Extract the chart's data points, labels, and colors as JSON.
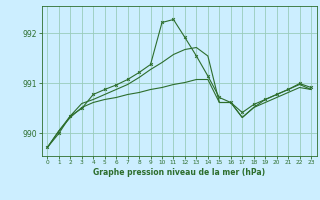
{
  "title": "Graphe pression niveau de la mer (hPa)",
  "background_color": "#cceeff",
  "grid_color": "#99ccbb",
  "line_color": "#2d6e2d",
  "xlim": [
    -0.5,
    23.5
  ],
  "ylim": [
    989.55,
    992.55
  ],
  "yticks": [
    990,
    991,
    992
  ],
  "xticks": [
    0,
    1,
    2,
    3,
    4,
    5,
    6,
    7,
    8,
    9,
    10,
    11,
    12,
    13,
    14,
    15,
    16,
    17,
    18,
    19,
    20,
    21,
    22,
    23
  ],
  "series1": [
    989.72,
    990.0,
    990.35,
    990.5,
    990.78,
    990.88,
    990.97,
    991.08,
    991.22,
    991.38,
    992.22,
    992.28,
    991.92,
    991.55,
    991.15,
    990.72,
    990.62,
    990.42,
    990.58,
    990.68,
    990.78,
    990.88,
    991.0,
    990.92
  ],
  "series2": [
    989.72,
    990.05,
    990.35,
    990.6,
    990.68,
    990.78,
    990.88,
    990.98,
    991.12,
    991.28,
    991.42,
    991.58,
    991.68,
    991.72,
    991.55,
    990.62,
    990.62,
    990.32,
    990.52,
    990.68,
    990.78,
    990.88,
    990.98,
    990.88
  ],
  "series3": [
    989.72,
    990.05,
    990.32,
    990.52,
    990.62,
    990.68,
    990.72,
    990.78,
    990.82,
    990.88,
    990.92,
    990.98,
    991.02,
    991.08,
    991.08,
    990.62,
    990.62,
    990.32,
    990.52,
    990.62,
    990.72,
    990.82,
    990.92,
    990.88
  ]
}
